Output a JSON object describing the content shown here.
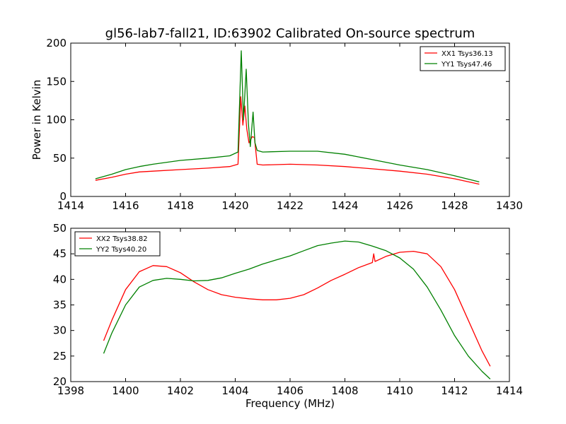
{
  "figure": {
    "title": "gl56-lab7-fall21, ID:63902 Calibrated On-source spectrum"
  },
  "chart_data": [
    {
      "type": "line",
      "title": "gl56-lab7-fall21, ID:63902 Calibrated On-source spectrum",
      "xlabel": "",
      "ylabel": "Power in Kelvin",
      "xlim": [
        1414,
        1430
      ],
      "ylim": [
        0,
        200
      ],
      "xticks": [
        1414,
        1416,
        1418,
        1420,
        1422,
        1424,
        1426,
        1428,
        1430
      ],
      "yticks": [
        0,
        50,
        100,
        150,
        200
      ],
      "grid": false,
      "legend_position": "top-right",
      "series": [
        {
          "name": "XX1 Tsys36.13",
          "color": "#ff0000",
          "x": [
            1414.9,
            1415.5,
            1416.0,
            1416.5,
            1417.0,
            1418.0,
            1419.0,
            1419.8,
            1420.1,
            1420.2,
            1420.28,
            1420.35,
            1420.42,
            1420.5,
            1420.62,
            1420.7,
            1420.8,
            1421.0,
            1422.0,
            1423.0,
            1424.0,
            1425.0,
            1426.0,
            1427.0,
            1428.0,
            1428.9
          ],
          "y": [
            21,
            25,
            29,
            32,
            33,
            35,
            37,
            39,
            42,
            130,
            93,
            118,
            88,
            70,
            78,
            77,
            42,
            41,
            42,
            41,
            39,
            36,
            33,
            29,
            23,
            16
          ]
        },
        {
          "name": "YY1 Tsys47.46",
          "color": "#008000",
          "x": [
            1414.9,
            1415.5,
            1416.0,
            1416.5,
            1417.0,
            1418.0,
            1419.0,
            1419.8,
            1420.1,
            1420.22,
            1420.3,
            1420.4,
            1420.48,
            1420.55,
            1420.65,
            1420.72,
            1420.8,
            1421.0,
            1422.0,
            1423.0,
            1424.0,
            1425.0,
            1426.0,
            1427.0,
            1428.0,
            1428.9
          ],
          "y": [
            23,
            29,
            35,
            39,
            42,
            47,
            50,
            53,
            58,
            190,
            100,
            166,
            95,
            65,
            110,
            70,
            60,
            58,
            59,
            59,
            55,
            48,
            41,
            35,
            27,
            19
          ]
        }
      ]
    },
    {
      "type": "line",
      "title": "",
      "xlabel": "Frequency (MHz)",
      "ylabel": "",
      "xlim": [
        1398,
        1414
      ],
      "ylim": [
        20,
        50
      ],
      "xticks": [
        1398,
        1400,
        1402,
        1404,
        1406,
        1408,
        1410,
        1412,
        1414
      ],
      "yticks": [
        20,
        25,
        30,
        35,
        40,
        45,
        50
      ],
      "grid": false,
      "legend_position": "top-left",
      "series": [
        {
          "name": "XX2 Tsys38.82",
          "color": "#ff0000",
          "x": [
            1399.2,
            1399.5,
            1400.0,
            1400.5,
            1401.0,
            1401.5,
            1402.0,
            1402.5,
            1403.0,
            1403.5,
            1404.0,
            1404.5,
            1405.0,
            1405.5,
            1406.0,
            1406.5,
            1407.0,
            1407.5,
            1408.0,
            1408.5,
            1409.0,
            1409.05,
            1409.1,
            1409.5,
            1410.0,
            1410.5,
            1411.0,
            1411.5,
            1412.0,
            1412.5,
            1413.0,
            1413.3
          ],
          "y": [
            28,
            32,
            38,
            41.5,
            42.7,
            42.5,
            41.3,
            39.5,
            38,
            37,
            36.5,
            36.2,
            36,
            36,
            36.3,
            37,
            38.3,
            39.8,
            41,
            42.3,
            43.3,
            45,
            43.5,
            44.5,
            45.3,
            45.5,
            45,
            42.5,
            38,
            32,
            26,
            23
          ]
        },
        {
          "name": "YY2 Tsys40.20",
          "color": "#008000",
          "x": [
            1399.2,
            1399.5,
            1400.0,
            1400.5,
            1401.0,
            1401.5,
            1402.0,
            1402.5,
            1403.0,
            1403.5,
            1404.0,
            1404.5,
            1405.0,
            1405.5,
            1406.0,
            1406.5,
            1407.0,
            1407.5,
            1408.0,
            1408.5,
            1409.0,
            1409.5,
            1410.0,
            1410.5,
            1411.0,
            1411.5,
            1412.0,
            1412.5,
            1413.0,
            1413.3
          ],
          "y": [
            25.5,
            29.5,
            35,
            38.5,
            39.8,
            40.2,
            40,
            39.7,
            39.8,
            40.3,
            41.2,
            42,
            43,
            43.8,
            44.6,
            45.6,
            46.6,
            47.1,
            47.5,
            47.3,
            46.5,
            45.6,
            44.2,
            42,
            38.5,
            34,
            29,
            25,
            22,
            20.5
          ]
        }
      ]
    }
  ]
}
